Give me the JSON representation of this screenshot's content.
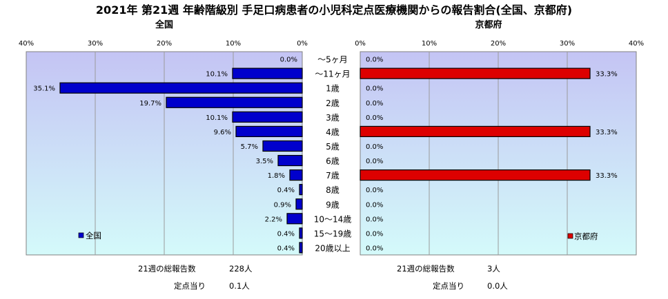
{
  "title": "2021年 第21週 年齢階級別 手足口病患者の小児科定点医療機関からの報告割合(全国、京都府)",
  "chart_data": [
    {
      "type": "bar",
      "orientation": "horizontal",
      "subtitle": "全国",
      "direction": "right-to-left",
      "xlim": [
        0,
        40
      ],
      "xticks": [
        "0%",
        "10%",
        "20%",
        "30%",
        "40%"
      ],
      "categories": [
        "～5ヶ月",
        "～11ヶ月",
        "1歳",
        "2歳",
        "3歳",
        "4歳",
        "5歳",
        "6歳",
        "7歳",
        "8歳",
        "9歳",
        "10～14歳",
        "15～19歳",
        "20歳以上"
      ],
      "series": [
        {
          "name": "全国",
          "color": "#0000cc",
          "values": [
            0.0,
            10.1,
            35.1,
            19.7,
            10.1,
            9.6,
            5.7,
            3.5,
            1.8,
            0.4,
            0.9,
            2.2,
            0.4,
            0.4
          ],
          "labels": [
            "0.0%",
            "10.1%",
            "35.1%",
            "19.7%",
            "10.1%",
            "9.6%",
            "5.7%",
            "3.5%",
            "1.8%",
            "0.4%",
            "0.9%",
            "2.2%",
            "0.4%",
            "0.4%"
          ]
        }
      ],
      "legend_position": "bottom-left",
      "grid": true
    },
    {
      "type": "bar",
      "orientation": "horizontal",
      "subtitle": "京都府",
      "direction": "left-to-right",
      "xlim": [
        0,
        40
      ],
      "xticks": [
        "0%",
        "10%",
        "20%",
        "30%",
        "40%"
      ],
      "categories": [
        "～5ヶ月",
        "～11ヶ月",
        "1歳",
        "2歳",
        "3歳",
        "4歳",
        "5歳",
        "6歳",
        "7歳",
        "8歳",
        "9歳",
        "10～14歳",
        "15～19歳",
        "20歳以上"
      ],
      "series": [
        {
          "name": "京都府",
          "color": "#dd0000",
          "values": [
            0.0,
            33.3,
            0.0,
            0.0,
            0.0,
            33.3,
            0.0,
            0.0,
            33.3,
            0.0,
            0.0,
            0.0,
            0.0,
            0.0
          ],
          "labels": [
            "0.0%",
            "33.3%",
            "0.0%",
            "0.0%",
            "0.0%",
            "33.3%",
            "0.0%",
            "0.0%",
            "33.3%",
            "0.0%",
            "0.0%",
            "0.0%",
            "0.0%",
            "0.0%"
          ]
        }
      ],
      "legend_position": "bottom-right",
      "grid": true
    }
  ],
  "footer": {
    "national": {
      "total_label": "21週の総報告数",
      "total_value": "228人",
      "per_label": "定点当り",
      "per_value": "0.1人"
    },
    "kyoto": {
      "total_label": "21週の総報告数",
      "total_value": "3人",
      "per_label": "定点当り",
      "per_value": "0.0人"
    }
  },
  "colors": {
    "national_bar": "#0000cc",
    "kyoto_bar": "#dd0000",
    "plot_bg_top": "#c4c4f4",
    "plot_bg_bottom": "#d4fafa"
  }
}
